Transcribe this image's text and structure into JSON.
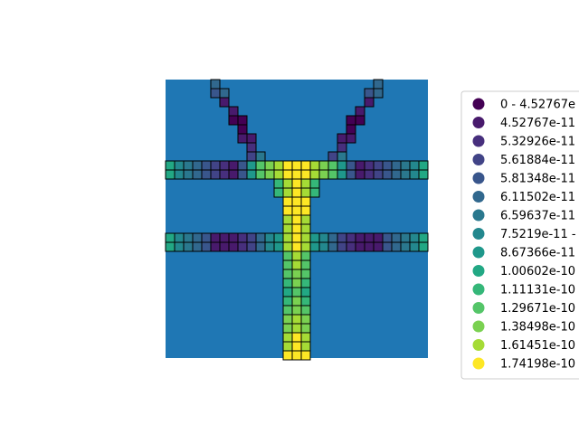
{
  "chart_data": {
    "type": "heatmap",
    "title": "",
    "colors": {
      "background": "#1f77b4",
      "cell_edge": "#000000",
      "legend_border": "#cccccc"
    },
    "legend": {
      "placement": "right",
      "entries": [
        {
          "label": "0 - 4.52767e",
          "color": "#440154"
        },
        {
          "label": "4.52767e-11",
          "color": "#481a6c"
        },
        {
          "label": "5.32926e-11",
          "color": "#472f7d"
        },
        {
          "label": "5.61884e-11",
          "color": "#414487"
        },
        {
          "label": "5.81348e-11",
          "color": "#39568c"
        },
        {
          "label": "6.11502e-11",
          "color": "#31688e"
        },
        {
          "label": "6.59637e-11",
          "color": "#2a788e"
        },
        {
          "label": "7.5219e-11 -",
          "color": "#23888e"
        },
        {
          "label": "8.67366e-11",
          "color": "#1f988b"
        },
        {
          "label": "1.00602e-10",
          "color": "#22a884"
        },
        {
          "label": "1.11131e-10",
          "color": "#35b779"
        },
        {
          "label": "1.29671e-10",
          "color": "#54c568"
        },
        {
          "label": "1.38498e-10",
          "color": "#7ad151"
        },
        {
          "label": "1.61451e-10",
          "color": "#a5db36"
        },
        {
          "label": "1.74198e-10",
          "color": "#fde725"
        }
      ]
    },
    "grid_size": [
      29,
      31
    ],
    "cells": [
      {
        "r": 0,
        "c": 5,
        "v": 5
      },
      {
        "r": 0,
        "c": 23,
        "v": 5
      },
      {
        "r": 1,
        "c": 5,
        "v": 4
      },
      {
        "r": 1,
        "c": 6,
        "v": 5
      },
      {
        "r": 1,
        "c": 22,
        "v": 4
      },
      {
        "r": 1,
        "c": 23,
        "v": 5
      },
      {
        "r": 2,
        "c": 6,
        "v": 1
      },
      {
        "r": 2,
        "c": 22,
        "v": 1
      },
      {
        "r": 3,
        "c": 7,
        "v": 1
      },
      {
        "r": 3,
        "c": 21,
        "v": 1
      },
      {
        "r": 4,
        "c": 7,
        "v": 0
      },
      {
        "r": 4,
        "c": 8,
        "v": 0
      },
      {
        "r": 4,
        "c": 20,
        "v": 0
      },
      {
        "r": 4,
        "c": 21,
        "v": 0
      },
      {
        "r": 5,
        "c": 8,
        "v": 0
      },
      {
        "r": 5,
        "c": 20,
        "v": 0
      },
      {
        "r": 6,
        "c": 8,
        "v": 1
      },
      {
        "r": 6,
        "c": 9,
        "v": 1
      },
      {
        "r": 6,
        "c": 19,
        "v": 1
      },
      {
        "r": 6,
        "c": 20,
        "v": 1
      },
      {
        "r": 7,
        "c": 9,
        "v": 2
      },
      {
        "r": 7,
        "c": 19,
        "v": 2
      },
      {
        "r": 8,
        "c": 9,
        "v": 3
      },
      {
        "r": 8,
        "c": 10,
        "v": 6
      },
      {
        "r": 8,
        "c": 18,
        "v": 3
      },
      {
        "r": 8,
        "c": 19,
        "v": 6
      },
      {
        "r": 9,
        "c": 0,
        "v": 9
      },
      {
        "r": 9,
        "c": 1,
        "v": 7
      },
      {
        "r": 9,
        "c": 2,
        "v": 6
      },
      {
        "r": 9,
        "c": 3,
        "v": 5
      },
      {
        "r": 9,
        "c": 4,
        "v": 4
      },
      {
        "r": 9,
        "c": 5,
        "v": 3
      },
      {
        "r": 9,
        "c": 6,
        "v": 2
      },
      {
        "r": 9,
        "c": 7,
        "v": 1
      },
      {
        "r": 9,
        "c": 8,
        "v": 4
      },
      {
        "r": 9,
        "c": 9,
        "v": 8
      },
      {
        "r": 9,
        "c": 10,
        "v": 11
      },
      {
        "r": 9,
        "c": 11,
        "v": 12
      },
      {
        "r": 9,
        "c": 12,
        "v": 13
      },
      {
        "r": 9,
        "c": 13,
        "v": 14
      },
      {
        "r": 9,
        "c": 14,
        "v": 14
      },
      {
        "r": 9,
        "c": 15,
        "v": 14
      },
      {
        "r": 9,
        "c": 16,
        "v": 13
      },
      {
        "r": 9,
        "c": 17,
        "v": 12
      },
      {
        "r": 9,
        "c": 18,
        "v": 11
      },
      {
        "r": 9,
        "c": 19,
        "v": 8
      },
      {
        "r": 9,
        "c": 20,
        "v": 4
      },
      {
        "r": 9,
        "c": 21,
        "v": 1
      },
      {
        "r": 9,
        "c": 22,
        "v": 2
      },
      {
        "r": 9,
        "c": 23,
        "v": 3
      },
      {
        "r": 9,
        "c": 24,
        "v": 4
      },
      {
        "r": 9,
        "c": 25,
        "v": 5
      },
      {
        "r": 9,
        "c": 26,
        "v": 6
      },
      {
        "r": 9,
        "c": 27,
        "v": 7
      },
      {
        "r": 9,
        "c": 28,
        "v": 9
      },
      {
        "r": 10,
        "c": 0,
        "v": 9
      },
      {
        "r": 10,
        "c": 1,
        "v": 7
      },
      {
        "r": 10,
        "c": 2,
        "v": 6
      },
      {
        "r": 10,
        "c": 3,
        "v": 5
      },
      {
        "r": 10,
        "c": 4,
        "v": 4
      },
      {
        "r": 10,
        "c": 5,
        "v": 3
      },
      {
        "r": 10,
        "c": 6,
        "v": 2
      },
      {
        "r": 10,
        "c": 7,
        "v": 1
      },
      {
        "r": 10,
        "c": 8,
        "v": 4
      },
      {
        "r": 10,
        "c": 9,
        "v": 8
      },
      {
        "r": 10,
        "c": 10,
        "v": 11
      },
      {
        "r": 10,
        "c": 11,
        "v": 12
      },
      {
        "r": 10,
        "c": 12,
        "v": 13
      },
      {
        "r": 10,
        "c": 13,
        "v": 14
      },
      {
        "r": 10,
        "c": 14,
        "v": 14
      },
      {
        "r": 10,
        "c": 15,
        "v": 14
      },
      {
        "r": 10,
        "c": 16,
        "v": 13
      },
      {
        "r": 10,
        "c": 17,
        "v": 12
      },
      {
        "r": 10,
        "c": 18,
        "v": 11
      },
      {
        "r": 10,
        "c": 19,
        "v": 8
      },
      {
        "r": 10,
        "c": 20,
        "v": 4
      },
      {
        "r": 10,
        "c": 21,
        "v": 1
      },
      {
        "r": 10,
        "c": 22,
        "v": 2
      },
      {
        "r": 10,
        "c": 23,
        "v": 3
      },
      {
        "r": 10,
        "c": 24,
        "v": 4
      },
      {
        "r": 10,
        "c": 25,
        "v": 5
      },
      {
        "r": 10,
        "c": 26,
        "v": 6
      },
      {
        "r": 10,
        "c": 27,
        "v": 7
      },
      {
        "r": 10,
        "c": 28,
        "v": 9
      },
      {
        "r": 11,
        "c": 12,
        "v": 10
      },
      {
        "r": 11,
        "c": 13,
        "v": 13
      },
      {
        "r": 11,
        "c": 14,
        "v": 14
      },
      {
        "r": 11,
        "c": 15,
        "v": 13
      },
      {
        "r": 11,
        "c": 16,
        "v": 10
      },
      {
        "r": 12,
        "c": 12,
        "v": 10
      },
      {
        "r": 12,
        "c": 13,
        "v": 13
      },
      {
        "r": 12,
        "c": 14,
        "v": 14
      },
      {
        "r": 12,
        "c": 15,
        "v": 13
      },
      {
        "r": 12,
        "c": 16,
        "v": 10
      },
      {
        "r": 13,
        "c": 13,
        "v": 14
      },
      {
        "r": 13,
        "c": 14,
        "v": 14
      },
      {
        "r": 13,
        "c": 15,
        "v": 14
      },
      {
        "r": 14,
        "c": 13,
        "v": 14
      },
      {
        "r": 14,
        "c": 14,
        "v": 14
      },
      {
        "r": 14,
        "c": 15,
        "v": 14
      },
      {
        "r": 17,
        "c": 0,
        "v": 9
      },
      {
        "r": 17,
        "c": 1,
        "v": 7
      },
      {
        "r": 17,
        "c": 2,
        "v": 6
      },
      {
        "r": 17,
        "c": 3,
        "v": 5
      },
      {
        "r": 17,
        "c": 4,
        "v": 4
      },
      {
        "r": 17,
        "c": 5,
        "v": 1
      },
      {
        "r": 17,
        "c": 6,
        "v": 1
      },
      {
        "r": 17,
        "c": 7,
        "v": 1
      },
      {
        "r": 17,
        "c": 8,
        "v": 2
      },
      {
        "r": 17,
        "c": 9,
        "v": 3
      },
      {
        "r": 17,
        "c": 10,
        "v": 5
      },
      {
        "r": 17,
        "c": 11,
        "v": 7
      },
      {
        "r": 17,
        "c": 12,
        "v": 8
      },
      {
        "r": 17,
        "c": 13,
        "v": 13
      },
      {
        "r": 17,
        "c": 14,
        "v": 14
      },
      {
        "r": 17,
        "c": 15,
        "v": 13
      },
      {
        "r": 17,
        "c": 16,
        "v": 8
      },
      {
        "r": 17,
        "c": 17,
        "v": 7
      },
      {
        "r": 17,
        "c": 18,
        "v": 5
      },
      {
        "r": 17,
        "c": 19,
        "v": 3
      },
      {
        "r": 17,
        "c": 20,
        "v": 2
      },
      {
        "r": 17,
        "c": 21,
        "v": 1
      },
      {
        "r": 17,
        "c": 22,
        "v": 1
      },
      {
        "r": 17,
        "c": 23,
        "v": 1
      },
      {
        "r": 17,
        "c": 24,
        "v": 4
      },
      {
        "r": 17,
        "c": 25,
        "v": 5
      },
      {
        "r": 17,
        "c": 26,
        "v": 6
      },
      {
        "r": 17,
        "c": 27,
        "v": 7
      },
      {
        "r": 17,
        "c": 28,
        "v": 9
      },
      {
        "r": 18,
        "c": 0,
        "v": 9
      },
      {
        "r": 18,
        "c": 1,
        "v": 7
      },
      {
        "r": 18,
        "c": 2,
        "v": 6
      },
      {
        "r": 18,
        "c": 3,
        "v": 5
      },
      {
        "r": 18,
        "c": 4,
        "v": 4
      },
      {
        "r": 18,
        "c": 5,
        "v": 1
      },
      {
        "r": 18,
        "c": 6,
        "v": 1
      },
      {
        "r": 18,
        "c": 7,
        "v": 1
      },
      {
        "r": 18,
        "c": 8,
        "v": 2
      },
      {
        "r": 18,
        "c": 9,
        "v": 3
      },
      {
        "r": 18,
        "c": 10,
        "v": 5
      },
      {
        "r": 18,
        "c": 11,
        "v": 7
      },
      {
        "r": 18,
        "c": 12,
        "v": 8
      },
      {
        "r": 18,
        "c": 13,
        "v": 13
      },
      {
        "r": 18,
        "c": 14,
        "v": 14
      },
      {
        "r": 18,
        "c": 15,
        "v": 13
      },
      {
        "r": 18,
        "c": 16,
        "v": 8
      },
      {
        "r": 18,
        "c": 17,
        "v": 7
      },
      {
        "r": 18,
        "c": 18,
        "v": 5
      },
      {
        "r": 18,
        "c": 19,
        "v": 3
      },
      {
        "r": 18,
        "c": 20,
        "v": 2
      },
      {
        "r": 18,
        "c": 21,
        "v": 1
      },
      {
        "r": 18,
        "c": 22,
        "v": 1
      },
      {
        "r": 18,
        "c": 23,
        "v": 1
      },
      {
        "r": 18,
        "c": 24,
        "v": 4
      },
      {
        "r": 18,
        "c": 25,
        "v": 5
      },
      {
        "r": 18,
        "c": 26,
        "v": 6
      },
      {
        "r": 18,
        "c": 27,
        "v": 7
      },
      {
        "r": 18,
        "c": 28,
        "v": 9
      },
      {
        "r": 15,
        "c": 13,
        "v": 13
      },
      {
        "r": 15,
        "c": 14,
        "v": 14
      },
      {
        "r": 15,
        "c": 15,
        "v": 13
      },
      {
        "r": 16,
        "c": 13,
        "v": 13
      },
      {
        "r": 16,
        "c": 14,
        "v": 14
      },
      {
        "r": 16,
        "c": 15,
        "v": 13
      },
      {
        "r": 19,
        "c": 13,
        "v": 11
      },
      {
        "r": 19,
        "c": 14,
        "v": 13
      },
      {
        "r": 19,
        "c": 15,
        "v": 11
      },
      {
        "r": 20,
        "c": 13,
        "v": 11
      },
      {
        "r": 20,
        "c": 14,
        "v": 13
      },
      {
        "r": 20,
        "c": 15,
        "v": 11
      },
      {
        "r": 21,
        "c": 13,
        "v": 11
      },
      {
        "r": 21,
        "c": 14,
        "v": 12
      },
      {
        "r": 21,
        "c": 15,
        "v": 11
      },
      {
        "r": 22,
        "c": 13,
        "v": 10
      },
      {
        "r": 22,
        "c": 14,
        "v": 12
      },
      {
        "r": 22,
        "c": 15,
        "v": 10
      },
      {
        "r": 23,
        "c": 13,
        "v": 9
      },
      {
        "r": 23,
        "c": 14,
        "v": 11
      },
      {
        "r": 23,
        "c": 15,
        "v": 9
      },
      {
        "r": 24,
        "c": 13,
        "v": 10
      },
      {
        "r": 24,
        "c": 14,
        "v": 12
      },
      {
        "r": 24,
        "c": 15,
        "v": 10
      },
      {
        "r": 25,
        "c": 13,
        "v": 11
      },
      {
        "r": 25,
        "c": 14,
        "v": 12
      },
      {
        "r": 25,
        "c": 15,
        "v": 11
      },
      {
        "r": 26,
        "c": 13,
        "v": 12
      },
      {
        "r": 26,
        "c": 14,
        "v": 13
      },
      {
        "r": 26,
        "c": 15,
        "v": 12
      },
      {
        "r": 27,
        "c": 13,
        "v": 12
      },
      {
        "r": 27,
        "c": 14,
        "v": 13
      },
      {
        "r": 27,
        "c": 15,
        "v": 12
      },
      {
        "r": 28,
        "c": 13,
        "v": 13
      },
      {
        "r": 28,
        "c": 14,
        "v": 14
      },
      {
        "r": 28,
        "c": 15,
        "v": 13
      },
      {
        "r": 29,
        "c": 13,
        "v": 13
      },
      {
        "r": 29,
        "c": 14,
        "v": 14
      },
      {
        "r": 29,
        "c": 15,
        "v": 13
      },
      {
        "r": 30,
        "c": 13,
        "v": 14
      },
      {
        "r": 30,
        "c": 14,
        "v": 14
      },
      {
        "r": 30,
        "c": 15,
        "v": 14
      }
    ]
  }
}
